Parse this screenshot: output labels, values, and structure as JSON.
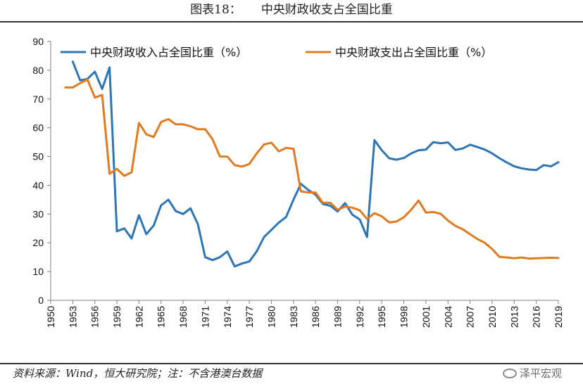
{
  "title": {
    "figure_no": "图表18：",
    "text": "中央财政收支占全国比重"
  },
  "footer": {
    "source": "资料来源：Wind，恒大研究院；注：不含港澳台数据"
  },
  "watermark": {
    "text": "泽平宏观",
    "icon": "wechat-icon"
  },
  "colors": {
    "revenue": "#2E75B6",
    "expenditure": "#E07B20",
    "axis": "#7f7f7f"
  },
  "chart_data": {
    "type": "line",
    "title": "",
    "xlabel": "",
    "ylabel": "",
    "xlim": [
      1950,
      2019
    ],
    "ylim": [
      0,
      90
    ],
    "x_ticks": [
      1950,
      1953,
      1956,
      1959,
      1962,
      1965,
      1968,
      1971,
      1974,
      1977,
      1980,
      1983,
      1986,
      1989,
      1992,
      1995,
      1998,
      2001,
      2004,
      2007,
      2010,
      2013,
      2016,
      2019
    ],
    "y_ticks": [
      0,
      10,
      20,
      30,
      40,
      50,
      60,
      70,
      80,
      90
    ],
    "grid": false,
    "legend_position": "top",
    "series": [
      {
        "name": "中央财政收入占全国比重（%）",
        "x": [
          1953,
          1954,
          1955,
          1956,
          1957,
          1958,
          1959,
          1960,
          1961,
          1962,
          1963,
          1964,
          1965,
          1966,
          1967,
          1968,
          1969,
          1970,
          1971,
          1972,
          1973,
          1974,
          1975,
          1976,
          1977,
          1978,
          1979,
          1980,
          1981,
          1982,
          1983,
          1984,
          1985,
          1986,
          1987,
          1988,
          1989,
          1990,
          1991,
          1992,
          1993,
          1994,
          1995,
          1996,
          1997,
          1998,
          1999,
          2000,
          2001,
          2002,
          2003,
          2004,
          2005,
          2006,
          2007,
          2008,
          2009,
          2010,
          2011,
          2012,
          2013,
          2014,
          2015,
          2016,
          2017,
          2018,
          2019
        ],
        "values": [
          83,
          76.5,
          77,
          79.5,
          73.5,
          81,
          24,
          25,
          21.5,
          29.6,
          23,
          26,
          33,
          35,
          31,
          30,
          32,
          26.5,
          15,
          14,
          15,
          17,
          11.8,
          12.8,
          13.5,
          17,
          22,
          24.5,
          27,
          29,
          35,
          40.5,
          38.4,
          36.7,
          33.5,
          32.9,
          30.9,
          33.8,
          29.8,
          28.1,
          22,
          55.7,
          52.2,
          49.4,
          48.9,
          49.5,
          51.1,
          52.2,
          52.4,
          55,
          54.6,
          54.9,
          52.3,
          52.8,
          54.1,
          53.3,
          52.4,
          51.1,
          49.4,
          47.9,
          46.6,
          45.9,
          45.5,
          45.3,
          47,
          46.6,
          48
        ]
      },
      {
        "name": "中央财政支出占全国比重（%）",
        "x": [
          1952,
          1953,
          1954,
          1955,
          1956,
          1957,
          1958,
          1959,
          1960,
          1961,
          1962,
          1963,
          1964,
          1965,
          1966,
          1967,
          1968,
          1969,
          1970,
          1971,
          1972,
          1973,
          1974,
          1975,
          1976,
          1977,
          1978,
          1979,
          1980,
          1981,
          1982,
          1983,
          1984,
          1985,
          1986,
          1987,
          1988,
          1989,
          1990,
          1991,
          1992,
          1993,
          1994,
          1995,
          1996,
          1997,
          1998,
          1999,
          2000,
          2001,
          2002,
          2003,
          2004,
          2005,
          2006,
          2007,
          2008,
          2009,
          2010,
          2011,
          2012,
          2013,
          2014,
          2015,
          2016,
          2017,
          2018,
          2019
        ],
        "values": [
          74,
          74,
          75.5,
          76.8,
          70.5,
          71.4,
          44,
          45.7,
          43.3,
          44.5,
          61.7,
          57.7,
          56.8,
          62,
          63,
          61.2,
          61.2,
          60.5,
          59.5,
          59.5,
          56,
          50,
          50,
          47,
          46.5,
          47.4,
          51.1,
          54.2,
          54.8,
          51.8,
          53,
          52.7,
          37.9,
          37.5,
          37.5,
          33.9,
          33.9,
          31.5,
          32.6,
          32.2,
          31.3,
          28.3,
          30.3,
          29.2,
          27.1,
          27.4,
          28.9,
          31.5,
          34.7,
          30.5,
          30.7,
          30.1,
          27.7,
          25.9,
          24.7,
          23,
          21.3,
          20,
          17.8,
          15.1,
          14.9,
          14.6,
          14.9,
          14.5,
          14.6,
          14.7,
          14.8,
          14.7
        ]
      }
    ]
  }
}
